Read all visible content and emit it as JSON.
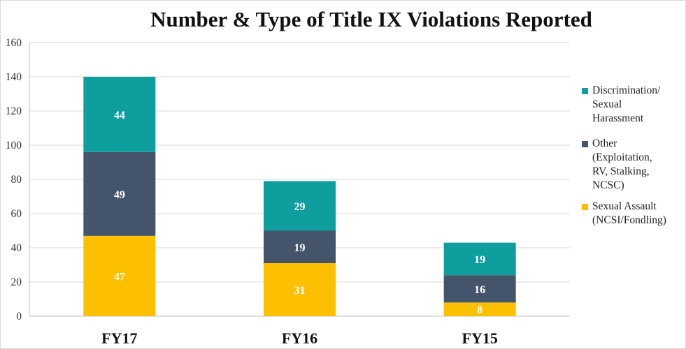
{
  "chart_data": {
    "type": "bar",
    "stacked": true,
    "title": "Number & Type of Title IX Violations Reported",
    "categories": [
      "FY17",
      "FY16",
      "FY15"
    ],
    "series": [
      {
        "name": "Sexual Assault (NCSI/Fondling)",
        "legend_label": "Sexual Assault\n(NCSI/Fondling)",
        "values": [
          47,
          31,
          8
        ],
        "color": "#fdc000"
      },
      {
        "name": "Other (Exploitation, RV, Stalking, NCSC)",
        "legend_label": "Other\n(Exploitation,\nRV, Stalking,\nNCSC)",
        "values": [
          49,
          19,
          16
        ],
        "color": "#44546a"
      },
      {
        "name": "Discrimination/ Sexual Harassment",
        "legend_label": "Discrimination/\nSexual\nHarassment",
        "values": [
          44,
          29,
          19
        ],
        "color": "#0e9e9e"
      }
    ],
    "legend_order": [
      2,
      1,
      0
    ],
    "ylim": [
      0,
      160
    ],
    "yticks": [
      0,
      20,
      40,
      60,
      80,
      100,
      120,
      140,
      160
    ],
    "grid": true,
    "legend_position": "right"
  }
}
